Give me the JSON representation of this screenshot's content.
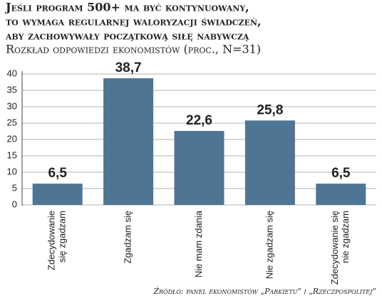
{
  "chart_data": {
    "type": "bar",
    "title": [
      "Jeśli program 500+ ma być kontynuowany,",
      "to wymaga regularnej waloryzacji świadczeń,",
      "aby zachowywały początkową siłę nabywczą"
    ],
    "subtitle": "Rozkład odpowiedzi ekonomistów (proc., N=31)",
    "categories": [
      [
        "Zdecydowanie",
        "się zgadzam"
      ],
      [
        "Zgadzam się"
      ],
      [
        "Nie mam zdania"
      ],
      [
        "Nie zgadzam się"
      ],
      [
        "Zdecydowanie się",
        "nie zgadzam"
      ]
    ],
    "values": [
      6.5,
      38.7,
      22.6,
      25.8,
      6.5
    ],
    "value_labels": [
      "6,5",
      "38,7",
      "22,6",
      "25,8",
      "6,5"
    ],
    "color": "#4f7595",
    "ylim": [
      0,
      40
    ],
    "yticks": [
      0,
      5,
      10,
      15,
      20,
      25,
      30,
      35,
      40
    ],
    "grid": true,
    "source": "Źródło: panel ekonomistów „Parkietu” i „Rzeczpospolitej”"
  }
}
